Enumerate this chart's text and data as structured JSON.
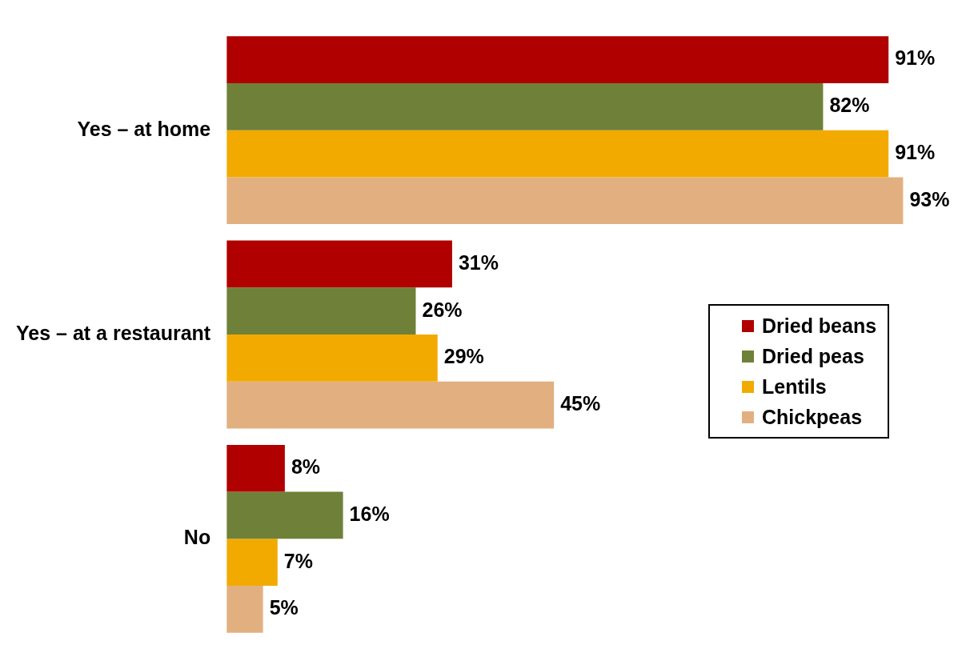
{
  "chart_data": {
    "type": "bar",
    "orientation": "horizontal",
    "categories": [
      "Yes – at home",
      "Yes – at a restaurant",
      "No"
    ],
    "series": [
      {
        "name": "Dried beans",
        "color": "#b00000",
        "values": [
          91,
          31,
          8
        ],
        "value_labels": [
          "91%",
          "31%",
          "8%"
        ]
      },
      {
        "name": "Dried peas",
        "color": "#6f8039",
        "values": [
          82,
          26,
          16
        ],
        "value_labels": [
          "82%",
          "26%",
          "16%"
        ]
      },
      {
        "name": "Lentils",
        "color": "#f2aa00",
        "values": [
          91,
          29,
          7
        ],
        "value_labels": [
          "91%",
          "29%",
          "7%"
        ]
      },
      {
        "name": "Chickpeas",
        "color": "#e2b080",
        "values": [
          93,
          45,
          5
        ],
        "value_labels": [
          "93%",
          "45%",
          "5%"
        ]
      }
    ],
    "tick_labels": "y",
    "legend": "right"
  }
}
